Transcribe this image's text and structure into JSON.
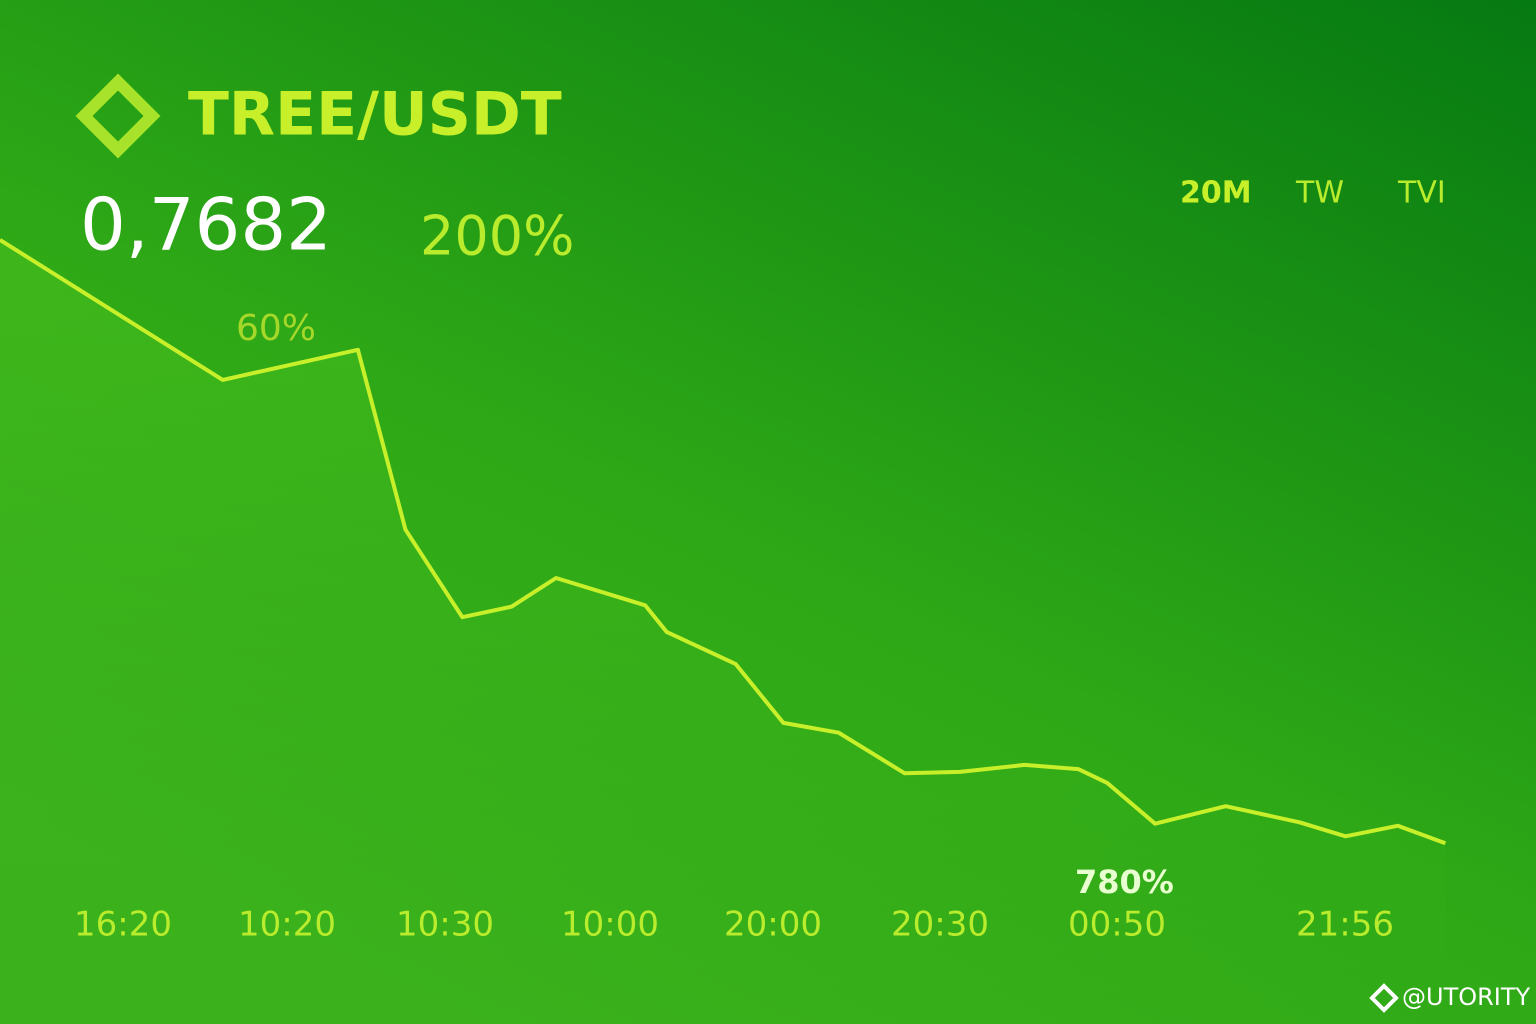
{
  "chart_data": {
    "type": "line",
    "title": "TREE/USDT",
    "price": "0,7682",
    "change": "200%",
    "timeframes": [
      "20M",
      "TW",
      "TVI"
    ],
    "annotations": [
      "60%",
      "780%"
    ],
    "watermark": "@UTORITY",
    "categories": [
      "16:20",
      "10:20",
      "10:30",
      "10:00",
      "20:00",
      "20:30",
      "00:50",
      "21:56"
    ],
    "x": [
      0,
      14.5,
      23.3,
      26.4,
      30.1,
      33.3,
      36.2,
      42,
      43.4,
      47.9,
      51,
      54.6,
      58.9,
      62.5,
      66.7,
      70.2,
      72.1,
      75.2,
      79.8,
      84.6,
      87.6,
      91,
      94.1
    ],
    "values": [
      94.3,
      74.3,
      78.6,
      52.9,
      40.4,
      41.9,
      46,
      42.1,
      38.3,
      33.7,
      25.3,
      23.9,
      18.1,
      18.3,
      19.3,
      18.7,
      16.7,
      10.9,
      13.4,
      11.1,
      9.1,
      10.6,
      8.1
    ],
    "xlim": [
      0,
      100
    ],
    "ylim": [
      0,
      100
    ],
    "color": "#c8f02a"
  }
}
